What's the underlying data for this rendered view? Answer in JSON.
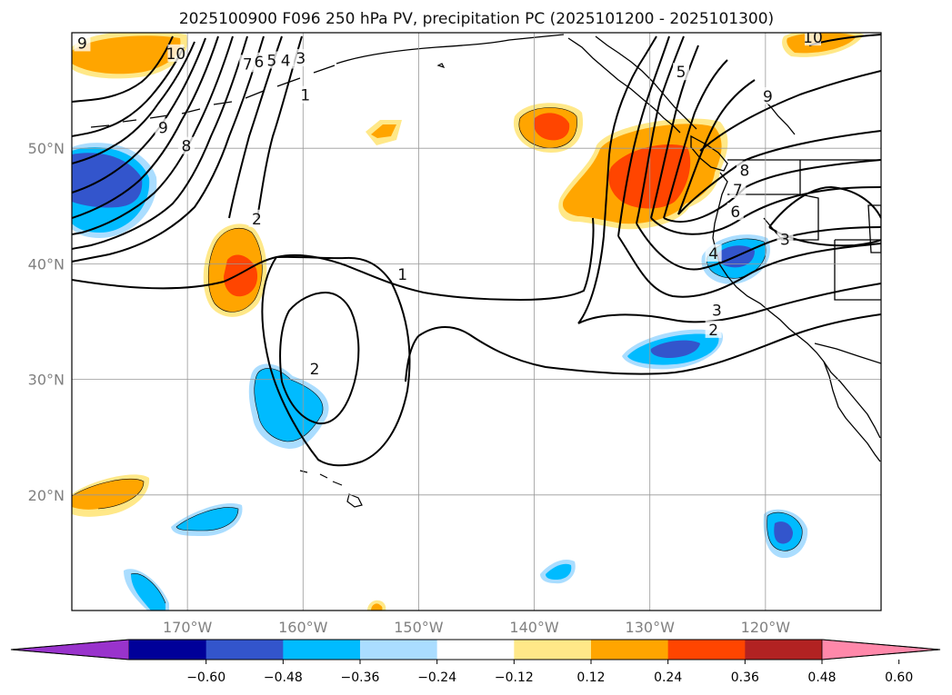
{
  "chart_data": {
    "type": "contour-map",
    "title": "2025100900 F096 250 hPa PV, precipitation PC (2025101200 - 2025101300)",
    "extent": {
      "lon_min": -180,
      "lon_max": -110,
      "lat_min": 10,
      "lat_max": 60
    },
    "latitude_ticks": [
      {
        "value": 50,
        "label": "50°N"
      },
      {
        "value": 40,
        "label": "40°N"
      },
      {
        "value": 30,
        "label": "30°N"
      },
      {
        "value": 20,
        "label": "20°N"
      }
    ],
    "longitude_ticks": [
      {
        "value": -170,
        "label": "170°W"
      },
      {
        "value": -160,
        "label": "160°W"
      },
      {
        "value": -150,
        "label": "150°W"
      },
      {
        "value": -140,
        "label": "140°W"
      },
      {
        "value": -130,
        "label": "130°W"
      },
      {
        "value": -120,
        "label": "120°W"
      }
    ],
    "colorbar": {
      "ticks": [
        "−0.60",
        "−0.48",
        "−0.36",
        "−0.24",
        "−0.12",
        "0.12",
        "0.24",
        "0.36",
        "0.48",
        "0.60"
      ],
      "colors": [
        "#9933cc",
        "#000099",
        "#3355cc",
        "#00bbff",
        "#aaddff",
        "#ffffff",
        "#ffe888",
        "#ffa500",
        "#ff4500",
        "#b22222",
        "#ff88aa"
      ],
      "extend": "both"
    },
    "pv_contour_labels": [
      {
        "text": "9",
        "lon": -179.1,
        "lat": 59.1
      },
      {
        "text": "10",
        "lon": -171.0,
        "lat": 58.2
      },
      {
        "text": "7",
        "lon": -164.8,
        "lat": 57.3
      },
      {
        "text": "6",
        "lon": -163.8,
        "lat": 57.5
      },
      {
        "text": "5",
        "lon": -162.7,
        "lat": 57.6
      },
      {
        "text": "4",
        "lon": -161.5,
        "lat": 57.6
      },
      {
        "text": "3",
        "lon": -160.2,
        "lat": 57.8
      },
      {
        "text": "9",
        "lon": -172.1,
        "lat": 51.8
      },
      {
        "text": "8",
        "lon": -170.1,
        "lat": 50.2
      },
      {
        "text": "1",
        "lon": -159.8,
        "lat": 54.6
      },
      {
        "text": "2",
        "lon": -164.0,
        "lat": 43.9
      },
      {
        "text": "1",
        "lon": -151.4,
        "lat": 39.1
      },
      {
        "text": "2",
        "lon": -159.0,
        "lat": 30.9
      },
      {
        "text": "5",
        "lon": -127.3,
        "lat": 56.6
      },
      {
        "text": "9",
        "lon": -119.8,
        "lat": 54.5
      },
      {
        "text": "10",
        "lon": -115.9,
        "lat": 59.6
      },
      {
        "text": "8",
        "lon": -121.8,
        "lat": 48.1
      },
      {
        "text": "7",
        "lon": -122.4,
        "lat": 46.4
      },
      {
        "text": "6",
        "lon": -122.6,
        "lat": 44.5
      },
      {
        "text": "3",
        "lon": -118.3,
        "lat": 42.1
      },
      {
        "text": "4",
        "lon": -124.5,
        "lat": 40.9
      },
      {
        "text": "3",
        "lon": -124.2,
        "lat": 36.0
      },
      {
        "text": "2",
        "lon": -124.5,
        "lat": 34.3
      }
    ],
    "precipitation_pc_features": [
      {
        "sign": "positive",
        "peak": "0.36",
        "lon": -175.7,
        "lat": 58.3
      },
      {
        "sign": "positive",
        "peak": "0.24",
        "lon": -114.6,
        "lat": 59.2
      },
      {
        "sign": "negative",
        "peak": "-0.36",
        "lon": -176.8,
        "lat": 46.8
      },
      {
        "sign": "positive",
        "peak": "0.36",
        "lon": -164.2,
        "lat": 38.9
      },
      {
        "sign": "positive",
        "peak": "0.24",
        "lon": -153.9,
        "lat": 51.4
      },
      {
        "sign": "positive",
        "peak": "0.36",
        "lon": -139.1,
        "lat": 51.8
      },
      {
        "sign": "positive",
        "peak": "0.36",
        "lon": -130.5,
        "lat": 46.8
      },
      {
        "sign": "negative",
        "peak": "-0.36",
        "lon": -122.3,
        "lat": 40.7
      },
      {
        "sign": "negative",
        "peak": "-0.36",
        "lon": -128.9,
        "lat": 32.7
      },
      {
        "sign": "negative",
        "peak": "-0.24",
        "lon": -160.4,
        "lat": 27.6
      },
      {
        "sign": "positive",
        "peak": "0.36",
        "lon": -176.0,
        "lat": 20.1
      },
      {
        "sign": "negative",
        "peak": "-0.24",
        "lon": -168.0,
        "lat": 17.8
      },
      {
        "sign": "negative",
        "peak": "-0.36",
        "lon": -118.6,
        "lat": 16.3
      },
      {
        "sign": "negative",
        "peak": "-0.24",
        "lon": -137.8,
        "lat": 13.5
      },
      {
        "sign": "negative",
        "peak": "-0.24",
        "lon": -173.6,
        "lat": 11.9
      },
      {
        "sign": "positive",
        "peak": "0.24",
        "lon": -152.6,
        "lat": 10.3
      }
    ]
  }
}
